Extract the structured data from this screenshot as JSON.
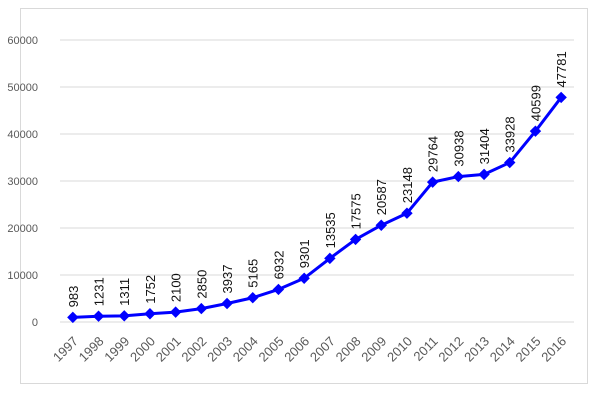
{
  "chart_data": {
    "type": "line",
    "title": "",
    "xlabel": "",
    "ylabel": "",
    "x": [
      "1997",
      "1998",
      "1999",
      "2000",
      "2001",
      "2002",
      "2003",
      "2004",
      "2005",
      "2006",
      "2007",
      "2008",
      "2009",
      "2010",
      "2011",
      "2012",
      "2013",
      "2014",
      "2015",
      "2016"
    ],
    "series": [
      {
        "values": [
          983,
          1231,
          1311,
          1752,
          2100,
          2850,
          3937,
          5165,
          6932,
          9301,
          13535,
          17575,
          20587,
          23148,
          29764,
          30938,
          31404,
          33928,
          40599,
          47781
        ],
        "color": "#0000ff",
        "marker": "diamond"
      }
    ],
    "data_labels": [
      "983",
      "1231",
      "1311",
      "1752",
      "2100",
      "2850",
      "3937",
      "5165",
      "6932",
      "9301",
      "13535",
      "17575",
      "20587",
      "23148",
      "29764",
      "30938",
      "31404",
      "33928",
      "40599",
      "47781"
    ],
    "ylim": [
      0,
      60000
    ],
    "yticks": [
      0,
      10000,
      20000,
      30000,
      40000,
      50000,
      60000
    ],
    "ytick_labels": [
      "0",
      "10000",
      "20000",
      "30000",
      "40000",
      "50000",
      "60000"
    ],
    "grid": true,
    "legend": false
  }
}
